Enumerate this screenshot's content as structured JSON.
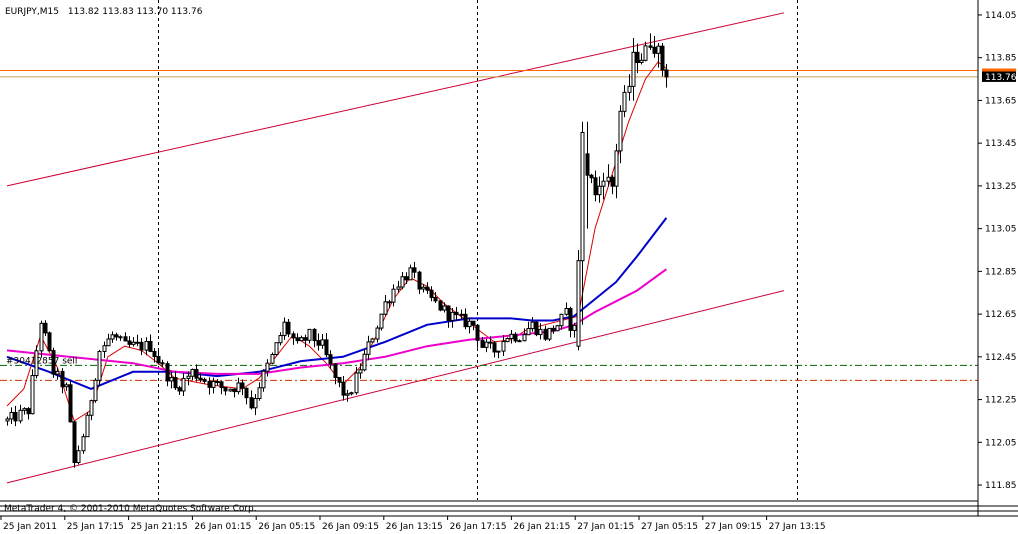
{
  "chart_data": {
    "type": "line",
    "title": "EURJPY,M15",
    "ohlc_header": "113.82 113.83 113.70 113.76",
    "symbol": "EURJPY",
    "timeframe": "M15",
    "ylim": [
      111.78,
      114.12
    ],
    "y_ticks": [
      "114.05",
      "113.85",
      "113.65",
      "113.45",
      "113.25",
      "113.05",
      "112.85",
      "112.65",
      "112.45",
      "112.25",
      "112.05",
      "111.85"
    ],
    "x_labels": [
      "25 Jan 2011",
      "25 Jan 17:15",
      "25 Jan 21:15",
      "26 Jan 01:15",
      "26 Jan 05:15",
      "26 Jan 09:15",
      "26 Jan 13:15",
      "26 Jan 17:15",
      "26 Jan 21:15",
      "27 Jan 01:15",
      "27 Jan 05:15",
      "27 Jan 09:15",
      "27 Jan 13:15"
    ],
    "bar_count": 186,
    "bid_price": "113.76",
    "bid_line": 113.76,
    "ask_line": 113.79,
    "ask_color": "#ff6600",
    "bid_tag_color": "#000000",
    "background": "#ffffff",
    "candle_color": "#000000",
    "order_label": "#30412857 sell",
    "order_line": {
      "price": 112.41,
      "color": "#006600"
    },
    "stop_line": {
      "price": 112.34,
      "color": "#cc3300"
    },
    "channel": {
      "color": "#cc0033",
      "upper": [
        [
          0,
          113.25
        ],
        [
          185,
          114.06
        ]
      ],
      "lower": [
        [
          0,
          111.86
        ],
        [
          185,
          112.76
        ]
      ]
    },
    "vlines": [
      36,
      112,
      188
    ],
    "anchors": [
      [
        0,
        112.15
      ],
      [
        5,
        112.2
      ],
      [
        8,
        112.62
      ],
      [
        11,
        112.38
      ],
      [
        14,
        112.3
      ],
      [
        16,
        111.95
      ],
      [
        19,
        112.15
      ],
      [
        22,
        112.48
      ],
      [
        25,
        112.55
      ],
      [
        28,
        112.5
      ],
      [
        31,
        112.5
      ],
      [
        34,
        112.5
      ],
      [
        37,
        112.4
      ],
      [
        40,
        112.3
      ],
      [
        44,
        112.38
      ],
      [
        48,
        112.33
      ],
      [
        52,
        112.3
      ],
      [
        56,
        112.32
      ],
      [
        58,
        112.22
      ],
      [
        60,
        112.32
      ],
      [
        63,
        112.45
      ],
      [
        66,
        112.6
      ],
      [
        69,
        112.5
      ],
      [
        72,
        112.55
      ],
      [
        75,
        112.5
      ],
      [
        78,
        112.35
      ],
      [
        81,
        112.25
      ],
      [
        84,
        112.4
      ],
      [
        87,
        112.55
      ],
      [
        90,
        112.7
      ],
      [
        93,
        112.8
      ],
      [
        96,
        112.85
      ],
      [
        99,
        112.75
      ],
      [
        102,
        112.7
      ],
      [
        105,
        112.65
      ],
      [
        108,
        112.62
      ],
      [
        111,
        112.6
      ],
      [
        113,
        112.5
      ],
      [
        116,
        112.48
      ],
      [
        119,
        112.55
      ],
      [
        122,
        112.55
      ],
      [
        125,
        112.6
      ],
      [
        128,
        112.55
      ],
      [
        131,
        112.6
      ],
      [
        133,
        112.65
      ],
      [
        134,
        112.6
      ],
      [
        135,
        112.58
      ],
      [
        136,
        112.5
      ],
      [
        137,
        112.85
      ],
      [
        138,
        113.5
      ],
      [
        139,
        113.3
      ],
      [
        140,
        113.2
      ],
      [
        142,
        113.3
      ],
      [
        144,
        113.25
      ],
      [
        146,
        113.6
      ],
      [
        148,
        113.72
      ],
      [
        149,
        113.85
      ],
      [
        151,
        113.85
      ],
      [
        153,
        113.92
      ],
      [
        155,
        113.88
      ],
      [
        156,
        113.8
      ],
      [
        157,
        113.76
      ]
    ],
    "special_bars": [
      {
        "i": 136,
        "o": 112.5,
        "c": 112.9,
        "h": 112.95,
        "l": 112.48
      },
      {
        "i": 137,
        "o": 112.9,
        "c": 113.5,
        "h": 113.55,
        "l": 112.6
      },
      {
        "i": 138,
        "o": 113.4,
        "c": 113.3,
        "h": 113.55,
        "l": 113.05
      }
    ],
    "series": [
      {
        "color": "#dd0000",
        "width": 1,
        "points": [
          [
            0,
            112.22
          ],
          [
            4,
            112.3
          ],
          [
            8,
            112.55
          ],
          [
            12,
            112.4
          ],
          [
            16,
            112.15
          ],
          [
            20,
            112.2
          ],
          [
            24,
            112.45
          ],
          [
            28,
            112.5
          ],
          [
            32,
            112.48
          ],
          [
            36,
            112.42
          ],
          [
            40,
            112.35
          ],
          [
            48,
            112.32
          ],
          [
            56,
            112.3
          ],
          [
            60,
            112.35
          ],
          [
            64,
            112.45
          ],
          [
            68,
            112.55
          ],
          [
            72,
            112.5
          ],
          [
            76,
            112.42
          ],
          [
            80,
            112.32
          ],
          [
            84,
            112.4
          ],
          [
            88,
            112.55
          ],
          [
            92,
            112.72
          ],
          [
            96,
            112.82
          ],
          [
            100,
            112.78
          ],
          [
            104,
            112.7
          ],
          [
            108,
            112.64
          ],
          [
            112,
            112.58
          ],
          [
            116,
            112.52
          ],
          [
            120,
            112.53
          ],
          [
            124,
            112.58
          ],
          [
            128,
            112.6
          ],
          [
            132,
            112.62
          ],
          [
            136,
            112.64
          ],
          [
            140,
            113.05
          ],
          [
            144,
            113.3
          ],
          [
            148,
            113.55
          ],
          [
            152,
            113.75
          ],
          [
            155,
            113.83
          ],
          [
            157,
            113.8
          ]
        ]
      },
      {
        "color": "#0000cc",
        "width": 2,
        "points": [
          [
            0,
            112.45
          ],
          [
            10,
            112.38
          ],
          [
            20,
            112.3
          ],
          [
            30,
            112.38
          ],
          [
            40,
            112.38
          ],
          [
            50,
            112.36
          ],
          [
            60,
            112.38
          ],
          [
            70,
            112.43
          ],
          [
            80,
            112.45
          ],
          [
            90,
            112.52
          ],
          [
            100,
            112.6
          ],
          [
            110,
            112.63
          ],
          [
            120,
            112.63
          ],
          [
            125,
            112.62
          ],
          [
            130,
            112.62
          ],
          [
            135,
            112.64
          ],
          [
            140,
            112.72
          ],
          [
            145,
            112.8
          ],
          [
            150,
            112.92
          ],
          [
            157,
            113.1
          ]
        ]
      },
      {
        "color": "#ee00cc",
        "width": 2,
        "points": [
          [
            0,
            112.48
          ],
          [
            10,
            112.46
          ],
          [
            20,
            112.44
          ],
          [
            30,
            112.42
          ],
          [
            40,
            112.38
          ],
          [
            50,
            112.37
          ],
          [
            60,
            112.37
          ],
          [
            70,
            112.4
          ],
          [
            80,
            112.42
          ],
          [
            90,
            112.45
          ],
          [
            100,
            112.5
          ],
          [
            110,
            112.53
          ],
          [
            120,
            112.55
          ],
          [
            130,
            112.57
          ],
          [
            135,
            112.6
          ],
          [
            140,
            112.66
          ],
          [
            145,
            112.71
          ],
          [
            150,
            112.76
          ],
          [
            157,
            112.86
          ]
        ]
      }
    ]
  },
  "footer": {
    "copyright": "MetaTrader 4, © 2001-2010 MetaQuotes Software Corp."
  }
}
